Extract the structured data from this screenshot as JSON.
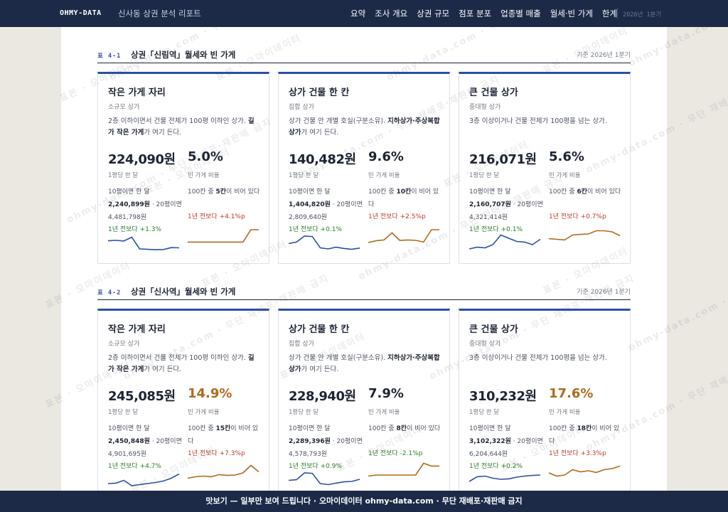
{
  "topnav": {
    "logo": "OHMY-DATA",
    "doc_title": "신사동 상권 분석 리포트",
    "items": [
      "요약",
      "조사 개요",
      "상권 규모",
      "점포 분포",
      "업종별 매출",
      "월세·빈 가게",
      "한계"
    ],
    "period": "2026년 1분기"
  },
  "tables": [
    {
      "no": "표 4-1",
      "title": "상권「신림역」월세와 빈 가게",
      "basis": "기준 2026년 1분기",
      "cards": [
        {
          "name": "작은 가게 자리",
          "kind": "소규모 상가",
          "desc_pre": "2층 이하이면서 건물 전체가 100평 이하인 상가. ",
          "desc_bold": "길가 작은 가게",
          "desc_post": "가 여기 든다.",
          "rent": "224,090원",
          "rent_label": "1평당 한 달",
          "rent_note_a": "10평이면 한 달 ",
          "rent_note_b": "2,240,899원",
          "rent_note_c": " · 20평이면 4,481,798원",
          "rent_yoy": "1년 전보다 +1.3%",
          "vacancy": "5.0%",
          "vacancy_label": "빈 가게 비율",
          "vacancy_note_a": "100칸 중 ",
          "vacancy_note_b": "5칸",
          "vacancy_note_c": "이 비어 있다",
          "vacancy_yoy": "1년 전보다 +4.1%p",
          "vacancy_alert": false,
          "vacancy_yoy_dir": "up",
          "rent_trend": [
            0.58,
            0.6,
            0.57,
            0.75,
            0.2,
            0.18,
            0.16,
            0.17,
            0.26,
            0.25
          ],
          "vacancy_trend": [
            0.12,
            0.12,
            0.12,
            0.12,
            0.12,
            0.12,
            0.12,
            0.12,
            0.7,
            0.7
          ],
          "colors": {
            "rent": "#2d4fa7",
            "vacancy": "#b06a1c"
          }
        },
        {
          "name": "상가 건물 한 칸",
          "kind": "집합 상가",
          "desc_pre": "상가 건물 안 개별 호실(구분소유). ",
          "desc_bold": "지하상가·주상복합 상가",
          "desc_post": "가 여기 든다.",
          "rent": "140,482원",
          "rent_label": "1평당 한 달",
          "rent_note_a": "10평이면 한 달 ",
          "rent_note_b": "1,404,820원",
          "rent_note_c": " · 20평이면 2,809,640원",
          "rent_yoy": "1년 전보다 +0.1%",
          "vacancy": "9.6%",
          "vacancy_label": "빈 가게 비율",
          "vacancy_note_a": "100칸 중 ",
          "vacancy_note_b": "10칸",
          "vacancy_note_c": "이 비어 있다",
          "vacancy_yoy": "1년 전보다 +2.5%p",
          "vacancy_alert": false,
          "vacancy_yoy_dir": "up",
          "rent_trend": [
            0.45,
            0.52,
            0.8,
            0.78,
            0.25,
            0.2,
            0.28,
            0.22,
            0.18,
            0.24
          ],
          "vacancy_trend": [
            0.1,
            0.18,
            0.22,
            0.55,
            0.2,
            0.22,
            0.2,
            0.12,
            0.7,
            0.7
          ],
          "colors": {
            "rent": "#2d4fa7",
            "vacancy": "#b06a1c"
          }
        },
        {
          "name": "큰 건물 상가",
          "kind": "중대형 상가",
          "desc_pre": "3층 이상이거나 건물 전체가 100평을 넘는 상가.",
          "desc_bold": "",
          "desc_post": "",
          "rent": "216,071원",
          "rent_label": "1평당 한 달",
          "rent_note_a": "10평이면 한 달 ",
          "rent_note_b": "2,160,707원",
          "rent_note_c": " · 20평이면 4,321,414원",
          "rent_yoy": "1년 전보다 +0.1%",
          "vacancy": "5.6%",
          "vacancy_label": "빈 가게 비율",
          "vacancy_note_a": "100칸 중 ",
          "vacancy_note_b": "6칸",
          "vacancy_note_c": "이 비어 있다",
          "vacancy_yoy": "1년 전보다 +0.7%p",
          "vacancy_alert": false,
          "vacancy_yoy_dir": "up",
          "rent_trend": [
            0.2,
            0.28,
            0.25,
            0.4,
            0.85,
            0.7,
            0.55,
            0.52,
            0.4,
            0.65
          ],
          "vacancy_trend": [
            0.28,
            0.25,
            0.22,
            0.45,
            0.48,
            0.5,
            0.65,
            0.65,
            0.6,
            0.42
          ],
          "colors": {
            "rent": "#2d4fa7",
            "vacancy": "#b06a1c"
          }
        }
      ]
    },
    {
      "no": "표 4-2",
      "title": "상권「신사역」월세와 빈 가게",
      "basis": "기준 2026년 1분기",
      "cards": [
        {
          "name": "작은 가게 자리",
          "kind": "소규모 상가",
          "desc_pre": "2층 이하이면서 건물 전체가 100평 이하인 상가. ",
          "desc_bold": "길가 작은 가게",
          "desc_post": "가 여기 든다.",
          "rent": "245,085원",
          "rent_label": "1평당 한 달",
          "rent_note_a": "10평이면 한 달 ",
          "rent_note_b": "2,450,848원",
          "rent_note_c": " · 20평이면 4,901,695원",
          "rent_yoy": "1년 전보다 +4.7%",
          "vacancy": "14.9%",
          "vacancy_label": "빈 가게 비율",
          "vacancy_note_a": "100칸 중 ",
          "vacancy_note_b": "15칸",
          "vacancy_note_c": "이 비어 있다",
          "vacancy_yoy": "1년 전보다 +7.3%p",
          "vacancy_alert": true,
          "vacancy_yoy_dir": "up",
          "rent_trend": [
            0.3,
            0.32,
            0.45,
            0.2,
            0.25,
            0.3,
            0.35,
            0.42,
            0.55,
            0.75
          ],
          "vacancy_trend": [
            0.15,
            0.22,
            0.25,
            0.22,
            0.32,
            0.28,
            0.3,
            0.4,
            0.75,
            0.45
          ],
          "colors": {
            "rent": "#2d4fa7",
            "vacancy": "#b06a1c"
          }
        },
        {
          "name": "상가 건물 한 칸",
          "kind": "집합 상가",
          "desc_pre": "상가 건물 안 개별 호실(구분소유). ",
          "desc_bold": "지하상가·주상복합 상가",
          "desc_post": "가 여기 든다.",
          "rent": "228,940원",
          "rent_label": "1평당 한 달",
          "rent_note_a": "10평이면 한 달 ",
          "rent_note_b": "2,289,396원",
          "rent_note_c": " · 20평이면 4,578,793원",
          "rent_yoy": "1년 전보다 +0.9%",
          "vacancy": "7.9%",
          "vacancy_label": "빈 가게 비율",
          "vacancy_note_a": "100칸 중 ",
          "vacancy_note_b": "8칸",
          "vacancy_note_c": "이 비어 있다",
          "vacancy_yoy": "1년 전보다 -2.1%p",
          "vacancy_alert": false,
          "vacancy_yoy_dir": "down",
          "rent_trend": [
            0.45,
            0.48,
            0.8,
            0.78,
            0.3,
            0.25,
            0.32,
            0.38,
            0.4,
            0.5
          ],
          "vacancy_trend": [
            0.25,
            0.3,
            0.3,
            0.3,
            0.3,
            0.3,
            0.3,
            0.85,
            0.72,
            0.72
          ],
          "colors": {
            "rent": "#2d4fa7",
            "vacancy": "#b06a1c"
          }
        },
        {
          "name": "큰 건물 상가",
          "kind": "중대형 상가",
          "desc_pre": "3층 이상이거나 건물 전체가 100평을 넘는 상가.",
          "desc_bold": "",
          "desc_post": "",
          "rent": "310,232원",
          "rent_label": "1평당 한 달",
          "rent_note_a": "10평이면 한 달 ",
          "rent_note_b": "3,102,322원",
          "rent_note_c": " · 20평이면 6,204,644원",
          "rent_yoy": "1년 전보다 +0.2%",
          "vacancy": "17.6%",
          "vacancy_label": "빈 가게 비율",
          "vacancy_note_a": "100칸 중 ",
          "vacancy_note_b": "18칸",
          "vacancy_note_c": "이 비어 있다",
          "vacancy_yoy": "1년 전보다 +3.3%p",
          "vacancy_alert": true,
          "vacancy_yoy_dir": "up",
          "rent_trend": [
            0.4,
            0.62,
            0.65,
            0.55,
            0.5,
            0.52,
            0.6,
            0.65,
            0.68,
            0.7
          ],
          "vacancy_trend": [
            0.4,
            0.25,
            0.3,
            0.55,
            0.45,
            0.5,
            0.42,
            0.55,
            0.6,
            0.72
          ],
          "colors": {
            "rent": "#2d4fa7",
            "vacancy": "#b06a1c"
          }
        }
      ]
    }
  ],
  "watermark": {
    "text_a": "표본 · 오마이데이터",
    "text_b": "ohmy-data.com · 무단 재배포·재판매 금지"
  },
  "footer": "맛보기 — 일부만 보여 드립니다 · 오마이데이터 ohmy-data.com · 무단 재배포·재판매 금지"
}
